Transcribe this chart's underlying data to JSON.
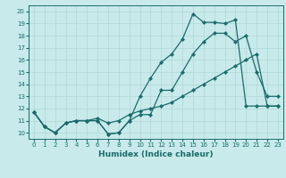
{
  "xlabel": "Humidex (Indice chaleur)",
  "x": [
    0,
    1,
    2,
    3,
    4,
    5,
    6,
    7,
    8,
    9,
    10,
    11,
    12,
    13,
    14,
    15,
    16,
    17,
    18,
    19,
    20,
    21,
    22,
    23
  ],
  "line_peak": [
    11.7,
    10.5,
    10.0,
    10.8,
    11.0,
    11.0,
    11.0,
    9.9,
    10.0,
    11.0,
    13.0,
    14.5,
    15.8,
    16.5,
    17.7,
    19.8,
    19.1,
    19.1,
    19.0,
    19.3,
    12.2,
    12.2,
    12.2,
    12.2
  ],
  "line_mid": [
    11.7,
    10.5,
    10.0,
    10.8,
    11.0,
    11.0,
    11.0,
    9.9,
    10.0,
    11.0,
    11.5,
    11.5,
    13.5,
    13.5,
    15.0,
    16.5,
    17.5,
    18.2,
    18.2,
    17.5,
    18.0,
    15.0,
    13.0,
    13.0
  ],
  "line_base": [
    11.7,
    10.5,
    10.0,
    10.8,
    11.0,
    11.0,
    11.2,
    10.8,
    11.0,
    11.5,
    11.8,
    12.0,
    12.2,
    12.5,
    13.0,
    13.5,
    14.0,
    14.5,
    15.0,
    15.5,
    16.0,
    16.5,
    12.2,
    12.2
  ],
  "line_color": "#1a6b6b",
  "bg_color": "#c8eaea",
  "grid_color": "#b0d8d8",
  "xlim": [
    -0.5,
    23.5
  ],
  "ylim": [
    9.5,
    20.5
  ],
  "yticks": [
    10,
    11,
    12,
    13,
    14,
    15,
    16,
    17,
    18,
    19,
    20
  ],
  "xticks": [
    0,
    1,
    2,
    3,
    4,
    5,
    6,
    7,
    8,
    9,
    10,
    11,
    12,
    13,
    14,
    15,
    16,
    17,
    18,
    19,
    20,
    21,
    22,
    23
  ]
}
